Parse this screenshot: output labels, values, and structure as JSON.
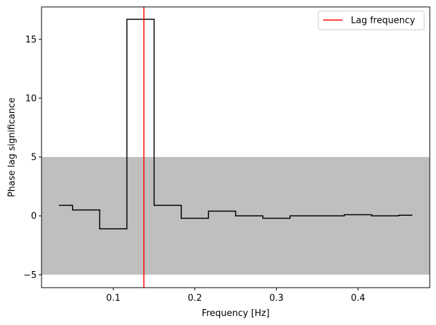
{
  "chart_data": {
    "type": "line",
    "step": "post",
    "xlabel": "Frequency [Hz]",
    "ylabel": "Phase lag significance",
    "xlim": [
      0.012,
      0.488
    ],
    "ylim": [
      -6.1,
      17.75
    ],
    "x_ticks": [
      0.1,
      0.2,
      0.3,
      0.4
    ],
    "x_tick_labels": [
      "0.1",
      "0.2",
      "0.3",
      "0.4"
    ],
    "y_ticks": [
      -5,
      0,
      5,
      10,
      15
    ],
    "y_tick_labels": [
      "−5",
      "0",
      "5",
      "10",
      "15"
    ],
    "grid": false,
    "legend_position": "top-right",
    "significance_band": {
      "from": -5,
      "to": 5,
      "color": "#bfbfbf"
    },
    "series": [
      {
        "x": [
          0.0333,
          0.05,
          0.0833,
          0.1167,
          0.15,
          0.1833,
          0.2167,
          0.25,
          0.2833,
          0.3167,
          0.35,
          0.3833,
          0.4167,
          0.45,
          0.4667
        ],
        "values": [
          0.9,
          0.5,
          -1.1,
          16.7,
          0.9,
          -0.2,
          0.4,
          0.0,
          -0.2,
          0.0,
          0.0,
          0.1,
          0.0,
          0.05,
          0.05
        ],
        "color": "#000000"
      }
    ],
    "vline": {
      "name": "Lag frequency",
      "x": 0.1375,
      "color": "#ff0000"
    }
  }
}
